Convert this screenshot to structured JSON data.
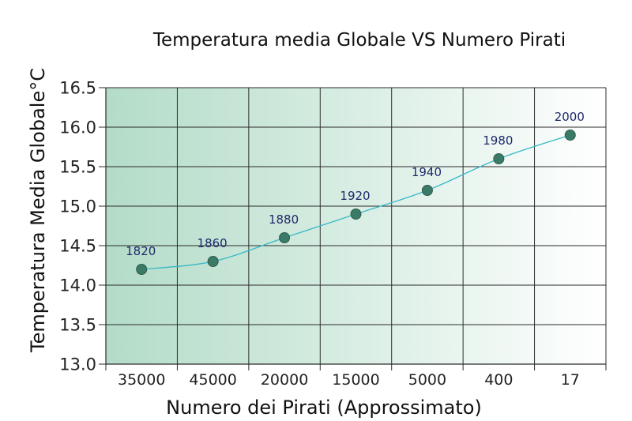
{
  "chart_data": {
    "type": "line",
    "title": "Temperatura media Globale VS Numero Pirati",
    "xlabel": "Numero dei Pirati (Approssimato)",
    "ylabel": "Temperatura Media Globale°C",
    "categories": [
      "35000",
      "45000",
      "20000",
      "15000",
      "5000",
      "400",
      "17"
    ],
    "series": [
      {
        "values": [
          14.2,
          14.3,
          14.6,
          14.9,
          15.2,
          15.6,
          15.9
        ],
        "point_labels": [
          "1820",
          "1860",
          "1880",
          "1920",
          "1940",
          "1980",
          "2000"
        ]
      }
    ],
    "ylim": [
      13.0,
      16.5
    ],
    "yticks": [
      "13.0",
      "13.5",
      "14.0",
      "14.5",
      "15.0",
      "15.5",
      "16.0",
      "16.5"
    ],
    "grid": true,
    "colors": {
      "gradient_start": "#b3dcc8",
      "gradient_end": "#ffffff",
      "line": "#37b8c8",
      "marker": "#3a7a66",
      "point_label": "#1f2a6b"
    }
  }
}
